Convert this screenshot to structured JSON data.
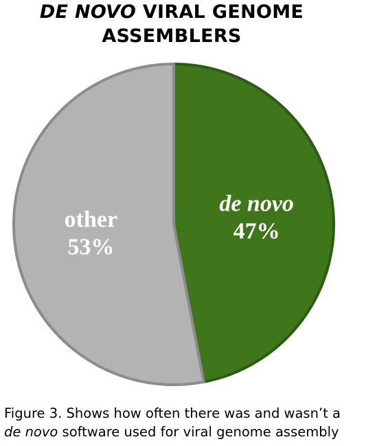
{
  "title": {
    "emphasis": "DE NOVO",
    "rest_line1": " VIRAL GENOME",
    "line2": "ASSEMBLERS"
  },
  "chart_data": {
    "type": "pie",
    "title": "DE NOVO VIRAL GENOME ASSEMBLERS",
    "slices": [
      {
        "name": "de novo",
        "value": 47,
        "label": "47%",
        "color": "#3f761b",
        "label_italic": true
      },
      {
        "name": "other",
        "value": 53,
        "label": "53%",
        "color": "#b3b3b3",
        "label_italic": false
      }
    ],
    "start_angle_deg": 0,
    "direction": "clockwise",
    "border_color_de_novo": "#2d5a14",
    "border_color_other": "#8c8c8c"
  },
  "caption": {
    "line1": "Figure 3. Shows how often there was and wasn’t a",
    "emphasis": "de novo",
    "line2_rest": " software used for viral genome assembly"
  }
}
